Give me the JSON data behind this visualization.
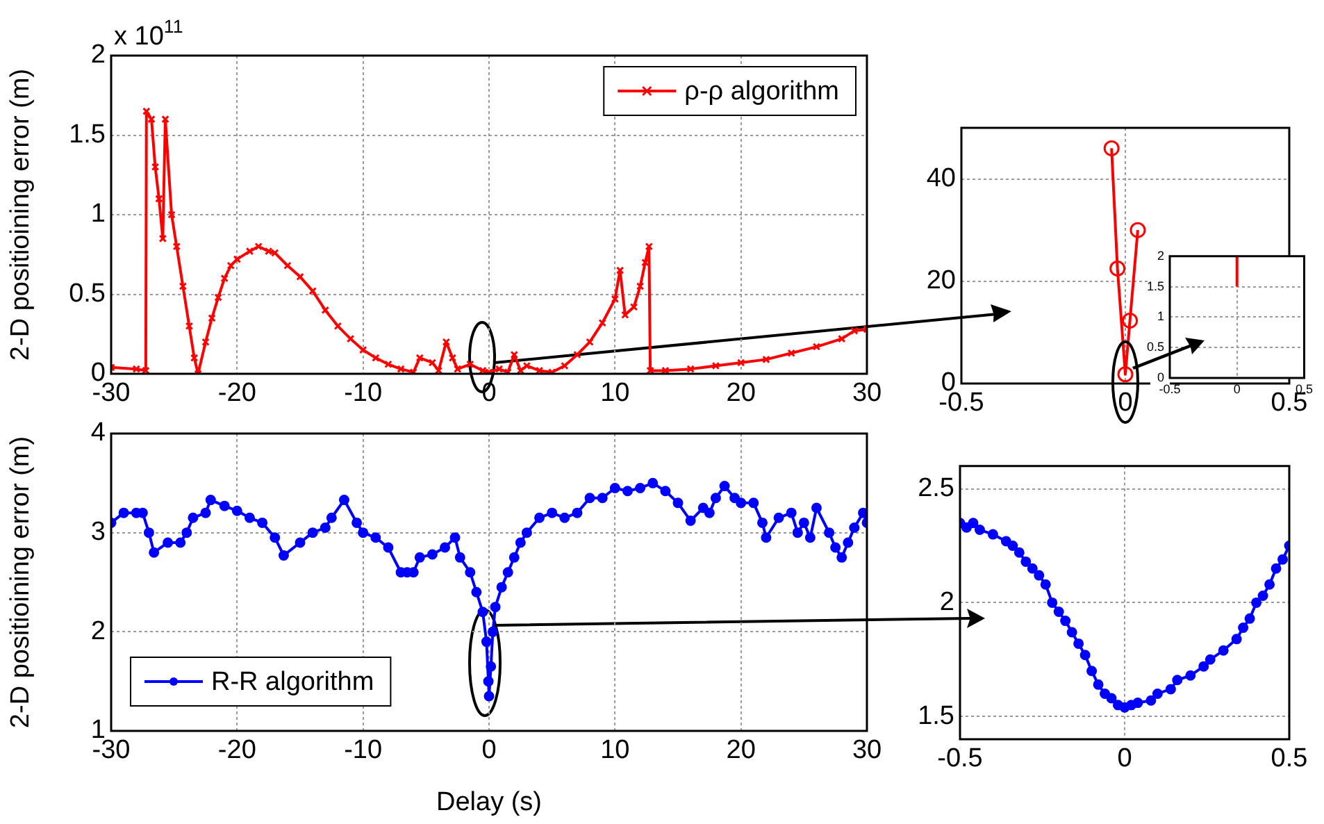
{
  "chart_data": [
    {
      "type": "line",
      "ylabel": "2-D positioining error (m)",
      "xlim": [
        -30,
        30
      ],
      "xticks": [
        -30,
        -20,
        -10,
        0,
        10,
        20,
        30
      ],
      "ylim": [
        0,
        2
      ],
      "yticks": [
        0,
        0.5,
        1,
        1.5,
        2
      ],
      "grid": true,
      "legend": "top right",
      "marker": "cross",
      "annotations": [
        "x 10$^{11}$"
      ],
      "x": [
        -30,
        -28,
        -27.25,
        -27.2,
        -26.8,
        -26.5,
        -26.2,
        -25.9,
        -25.7,
        -25.2,
        -24.8,
        -24.3,
        -23.8,
        -23.4,
        -23.1,
        -22.5,
        -22,
        -21.5,
        -21,
        -20.5,
        -20,
        -19,
        -18.3,
        -17.5,
        -17,
        -16,
        -15,
        -14,
        -13,
        -12,
        -11,
        -10,
        -9,
        -8,
        -7,
        -6,
        -5.5,
        -4.5,
        -4,
        -3.4,
        -2.9,
        -2.5,
        -1.5,
        -0.5,
        0,
        0.8,
        1.5,
        2,
        2.5,
        3,
        4,
        5,
        6,
        7,
        8,
        9,
        10,
        10.4,
        10.8,
        11.5,
        12,
        12.4,
        12.7,
        12.8,
        14,
        16,
        18,
        20,
        22,
        24,
        26,
        28,
        29,
        30
      ],
      "series": [
        {
          "name": "ρ-ρ algorithm",
          "color": "#ff0000",
          "values": [
            0.04,
            0.03,
            0.02,
            1.65,
            1.6,
            1.3,
            1.1,
            0.85,
            1.6,
            1.0,
            0.8,
            0.55,
            0.3,
            0.1,
            0,
            0.2,
            0.35,
            0.48,
            0.6,
            0.68,
            0.72,
            0.77,
            0.8,
            0.77,
            0.76,
            0.68,
            0.61,
            0.52,
            0.4,
            0.3,
            0.22,
            0.15,
            0.1,
            0.06,
            0.03,
            0.01,
            0.1,
            0.07,
            0.02,
            0.2,
            0.1,
            0.03,
            0.06,
            0.02,
            0.01,
            0.03,
            0.01,
            0.12,
            0.02,
            0.05,
            0.02,
            0.01,
            0.05,
            0.12,
            0.2,
            0.32,
            0.47,
            0.65,
            0.37,
            0.42,
            0.55,
            0.7,
            0.8,
            0.02,
            0.02,
            0.03,
            0.05,
            0.07,
            0.09,
            0.13,
            0.17,
            0.22,
            0.27,
            0.28
          ]
        }
      ]
    },
    {
      "type": "line",
      "xlim": [
        -0.5,
        0.5
      ],
      "xticks": [
        -0.5,
        0,
        0.5
      ],
      "ylim": [
        0,
        50
      ],
      "yticks": [
        0,
        20,
        40
      ],
      "grid": true,
      "marker": "circle",
      "x": [
        -0.042,
        -0.024,
        0,
        0.014,
        0.038
      ],
      "series": [
        {
          "color": "#ff0000",
          "values": [
            46,
            22.5,
            1.8,
            12.3,
            30
          ]
        }
      ]
    },
    {
      "type": "line",
      "xlim": [
        -0.5,
        0.5
      ],
      "xticks": [
        -0.5,
        0,
        0.5
      ],
      "ylim": [
        0,
        2
      ],
      "yticks": [
        0,
        0.5,
        1,
        1.5,
        2
      ],
      "grid": true,
      "marker": "none",
      "x": [
        0,
        0
      ],
      "series": [
        {
          "color": "#ff0000",
          "values": [
            1.5,
            2
          ]
        }
      ]
    },
    {
      "type": "line",
      "xlabel": "Delay (s)",
      "ylabel": "2-D positioining error (m)",
      "xlim": [
        -30,
        30
      ],
      "xticks": [
        -30,
        -20,
        -10,
        0,
        10,
        20,
        30
      ],
      "ylim": [
        1,
        4
      ],
      "yticks": [
        1,
        2,
        3,
        4
      ],
      "grid": true,
      "legend": "bottom left",
      "marker": "circle",
      "x": [
        -30,
        -29,
        -28,
        -27.5,
        -27,
        -26.6,
        -25.5,
        -24.5,
        -24,
        -23.5,
        -22.5,
        -22.1,
        -21,
        -20,
        -19,
        -18,
        -17,
        -16.3,
        -15,
        -14,
        -13,
        -12.5,
        -11.5,
        -10.5,
        -10,
        -9,
        -8,
        -7,
        -6.5,
        -6,
        -5.5,
        -4.5,
        -3.5,
        -2.7,
        -2.3,
        -1.5,
        -1,
        -0.5,
        -0.2,
        -0.05,
        0,
        0.15,
        0.3,
        0.5,
        1,
        1.5,
        2,
        2.5,
        3,
        4,
        5,
        6,
        7,
        8,
        9,
        10,
        11,
        12,
        13,
        14,
        15,
        16,
        17,
        17.5,
        18,
        18.7,
        19.5,
        20,
        21,
        21.7,
        22,
        23,
        24,
        24.5,
        25,
        25.5,
        26,
        27,
        27.5,
        28,
        28.5,
        29,
        29.7,
        30
      ],
      "series": [
        {
          "name": "R-R algorithm",
          "color": "#0000ff",
          "values": [
            3.1,
            3.2,
            3.2,
            3.2,
            3.0,
            2.8,
            2.9,
            2.9,
            3.0,
            3.15,
            3.2,
            3.33,
            3.27,
            3.22,
            3.15,
            3.1,
            2.95,
            2.77,
            2.9,
            3.0,
            3.05,
            3.15,
            3.33,
            3.1,
            3.0,
            2.95,
            2.85,
            2.6,
            2.6,
            2.6,
            2.75,
            2.78,
            2.85,
            2.95,
            2.75,
            2.6,
            2.4,
            2.2,
            1.9,
            1.5,
            1.35,
            1.65,
            2.0,
            2.25,
            2.45,
            2.6,
            2.75,
            2.9,
            3.0,
            3.15,
            3.2,
            3.15,
            3.2,
            3.35,
            3.35,
            3.45,
            3.42,
            3.45,
            3.5,
            3.42,
            3.3,
            3.12,
            3.25,
            3.2,
            3.35,
            3.47,
            3.35,
            3.3,
            3.3,
            3.1,
            2.95,
            3.15,
            3.2,
            3.0,
            3.1,
            2.95,
            3.25,
            3.0,
            2.85,
            2.75,
            2.9,
            3.05,
            3.2,
            3.1
          ]
        }
      ]
    },
    {
      "type": "line",
      "xlim": [
        -0.5,
        0.5
      ],
      "xticks": [
        -0.5,
        0,
        0.5
      ],
      "ylim": [
        1.4,
        2.6
      ],
      "yticks": [
        1.5,
        2,
        2.5
      ],
      "grid": true,
      "marker": "circle",
      "x": [
        -0.5,
        -0.48,
        -0.46,
        -0.44,
        -0.4,
        -0.36,
        -0.34,
        -0.32,
        -0.3,
        -0.28,
        -0.26,
        -0.24,
        -0.22,
        -0.2,
        -0.18,
        -0.16,
        -0.14,
        -0.12,
        -0.1,
        -0.08,
        -0.06,
        -0.04,
        -0.02,
        0,
        0.02,
        0.04,
        0.08,
        0.1,
        0.14,
        0.16,
        0.2,
        0.24,
        0.26,
        0.3,
        0.34,
        0.36,
        0.38,
        0.4,
        0.42,
        0.44,
        0.46,
        0.48,
        0.5
      ],
      "series": [
        {
          "color": "#0000ff",
          "values": [
            2.35,
            2.33,
            2.35,
            2.32,
            2.3,
            2.27,
            2.25,
            2.22,
            2.18,
            2.15,
            2.12,
            2.08,
            2.0,
            1.96,
            1.92,
            1.87,
            1.82,
            1.77,
            1.7,
            1.64,
            1.6,
            1.58,
            1.55,
            1.54,
            1.55,
            1.56,
            1.57,
            1.6,
            1.62,
            1.66,
            1.68,
            1.72,
            1.75,
            1.79,
            1.84,
            1.89,
            1.93,
            2.0,
            2.03,
            2.08,
            2.15,
            2.19,
            2.25
          ]
        }
      ]
    }
  ]
}
